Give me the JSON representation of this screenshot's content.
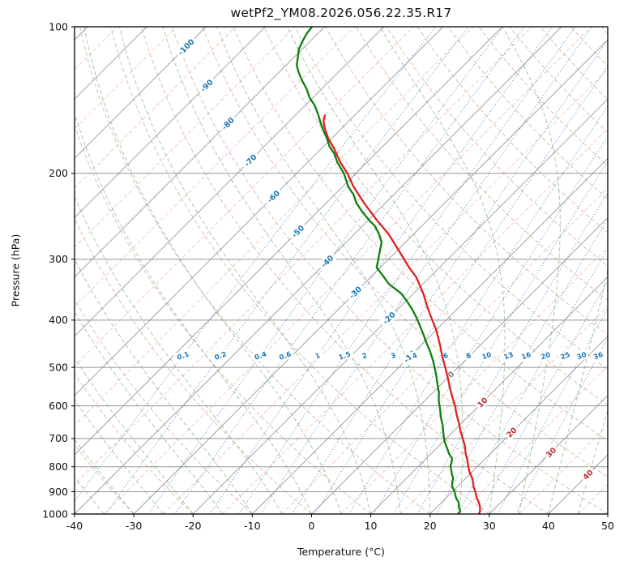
{
  "title": "wetPf2_YM08.2026.056.22.35.R17",
  "colors": {
    "isotherm_major": "#999999",
    "isotherm_minor": "#ef9087",
    "dry_adiabat": "#c7a589",
    "moist_adiabat": "#6aa86a",
    "mixing_ratio": "#4688c7",
    "pressure_line": "#8a8a8a",
    "border": "#000000",
    "temperature_line": "#e02020",
    "dewpoint_line": "#0d800d",
    "label_neg": "#1f77b4",
    "label_zero": "#808080",
    "label_pos": "#bf2f2f"
  },
  "chart_data": {
    "type": "line",
    "diagram": "skew-T log-p sounding",
    "title": "wetPf2_YM08.2026.056.22.35.R17",
    "x_axis": {
      "label": "Temperature (°C)",
      "range": [
        -40,
        50
      ],
      "ticks": [
        -40,
        -30,
        -20,
        -10,
        0,
        10,
        20,
        30,
        40,
        50
      ]
    },
    "y_axis": {
      "label": "Pressure (hPa)",
      "range": [
        1000,
        100
      ],
      "scale": "log",
      "ticks": [
        100,
        200,
        300,
        400,
        500,
        600,
        700,
        800,
        900,
        1000
      ]
    },
    "skew_degrees": 45,
    "background_lines": {
      "isotherms_major": {
        "start": -120,
        "end": 50,
        "step": 10,
        "style": "solid"
      },
      "isotherms_minor": {
        "start": -125,
        "end": 45,
        "step": 10,
        "style": "dashed"
      },
      "dry_adiabats": {
        "theta_c_start": -40,
        "theta_c_end": 200,
        "step": 10,
        "style": "dashed"
      },
      "moist_adiabats": {
        "thetaw_c_start": -40,
        "thetaw_c_end": 45,
        "step": 5,
        "style": "dashed"
      },
      "mixing_ratio_g_kg": {
        "values": [
          0.1,
          0.2,
          0.4,
          0.6,
          1,
          1.5,
          2,
          3,
          4,
          6,
          8,
          10,
          13,
          16,
          20,
          25,
          30,
          36
        ],
        "style": "dotted"
      },
      "pressure_lines": {
        "values": [
          100,
          200,
          300,
          400,
          500,
          600,
          700,
          800,
          900,
          1000
        ],
        "style": "solid"
      }
    },
    "isotherm_labels": [
      {
        "t": -100,
        "p": 110
      },
      {
        "t": -90,
        "p": 132
      },
      {
        "t": -80,
        "p": 158
      },
      {
        "t": -70,
        "p": 188
      },
      {
        "t": -60,
        "p": 223
      },
      {
        "t": -50,
        "p": 263
      },
      {
        "t": -40,
        "p": 303
      },
      {
        "t": -30,
        "p": 351
      },
      {
        "t": -20,
        "p": 396
      },
      {
        "t": -10,
        "p": 475
      },
      {
        "t": 0,
        "p": 517
      },
      {
        "t": 10,
        "p": 590
      },
      {
        "t": 20,
        "p": 680
      },
      {
        "t": 30,
        "p": 747
      },
      {
        "t": 40,
        "p": 830
      }
    ],
    "mixing_ratio_labels": {
      "pressure": 473
    },
    "series": [
      {
        "name": "temperature",
        "points_p_T": [
          [
            997,
            28.2
          ],
          [
            985,
            27.9
          ],
          [
            966,
            27.2
          ],
          [
            947,
            26.3
          ],
          [
            929,
            25.3
          ],
          [
            915,
            24.6
          ],
          [
            902,
            24.0
          ],
          [
            880,
            22.8
          ],
          [
            850,
            21.4
          ],
          [
            820,
            19.6
          ],
          [
            800,
            18.5
          ],
          [
            775,
            17.2
          ],
          [
            753,
            15.9
          ],
          [
            725,
            14.4
          ],
          [
            700,
            12.8
          ],
          [
            675,
            11.1
          ],
          [
            650,
            9.5
          ],
          [
            625,
            7.7
          ],
          [
            600,
            6.0
          ],
          [
            575,
            4.0
          ],
          [
            550,
            2.0
          ],
          [
            525,
            0.0
          ],
          [
            502,
            -2.0
          ],
          [
            475,
            -4.5
          ],
          [
            446,
            -7.2
          ],
          [
            420,
            -9.9
          ],
          [
            397,
            -12.7
          ],
          [
            375,
            -15.5
          ],
          [
            353,
            -18.3
          ],
          [
            327,
            -22.2
          ],
          [
            312,
            -25.1
          ],
          [
            289,
            -29.5
          ],
          [
            266,
            -34.3
          ],
          [
            250,
            -38.4
          ],
          [
            230,
            -43.6
          ],
          [
            213,
            -48.1
          ],
          [
            200,
            -51.4
          ],
          [
            190,
            -54.4
          ],
          [
            179,
            -57.5
          ],
          [
            169,
            -60.7
          ],
          [
            161,
            -63.0
          ],
          [
            156,
            -64.3
          ],
          [
            152,
            -65.0
          ]
        ]
      },
      {
        "name": "dewpoint",
        "points_p_T": [
          [
            997,
            24.7
          ],
          [
            986,
            24.6
          ],
          [
            966,
            23.6
          ],
          [
            947,
            22.9
          ],
          [
            929,
            21.8
          ],
          [
            915,
            21.1
          ],
          [
            902,
            20.5
          ],
          [
            878,
            19.1
          ],
          [
            861,
            18.4
          ],
          [
            845,
            17.9
          ],
          [
            829,
            17.0
          ],
          [
            813,
            16.2
          ],
          [
            798,
            15.4
          ],
          [
            783,
            14.9
          ],
          [
            768,
            14.3
          ],
          [
            753,
            13.1
          ],
          [
            739,
            12.2
          ],
          [
            711,
            10.3
          ],
          [
            684,
            8.7
          ],
          [
            658,
            7.2
          ],
          [
            633,
            5.5
          ],
          [
            609,
            4.0
          ],
          [
            586,
            2.4
          ],
          [
            563,
            1.0
          ],
          [
            542,
            -0.6
          ],
          [
            521,
            -2.2
          ],
          [
            502,
            -3.8
          ],
          [
            483,
            -5.5
          ],
          [
            464,
            -7.4
          ],
          [
            446,
            -9.4
          ],
          [
            429,
            -11.3
          ],
          [
            413,
            -13.2
          ],
          [
            397,
            -15.2
          ],
          [
            381,
            -17.4
          ],
          [
            367,
            -19.6
          ],
          [
            353,
            -22.0
          ],
          [
            337,
            -25.8
          ],
          [
            324,
            -28.2
          ],
          [
            312,
            -30.6
          ],
          [
            300,
            -31.7
          ],
          [
            288,
            -32.9
          ],
          [
            277,
            -34.0
          ],
          [
            266,
            -35.9
          ],
          [
            256,
            -38.0
          ],
          [
            250,
            -39.7
          ],
          [
            239,
            -42.6
          ],
          [
            230,
            -44.9
          ],
          [
            221,
            -46.8
          ],
          [
            213,
            -49.0
          ],
          [
            200,
            -52.0
          ],
          [
            190,
            -54.9
          ],
          [
            182,
            -57.0
          ],
          [
            176,
            -59.0
          ],
          [
            169,
            -60.9
          ],
          [
            163,
            -62.8
          ],
          [
            157,
            -64.6
          ],
          [
            151,
            -66.4
          ],
          [
            145,
            -68.4
          ],
          [
            140,
            -70.5
          ],
          [
            134,
            -72.6
          ],
          [
            129,
            -74.7
          ],
          [
            124,
            -76.7
          ],
          [
            120,
            -78.2
          ],
          [
            115,
            -79.5
          ],
          [
            111,
            -80.6
          ],
          [
            107,
            -81.3
          ],
          [
            103,
            -81.9
          ],
          [
            100,
            -82.1
          ]
        ]
      }
    ]
  }
}
